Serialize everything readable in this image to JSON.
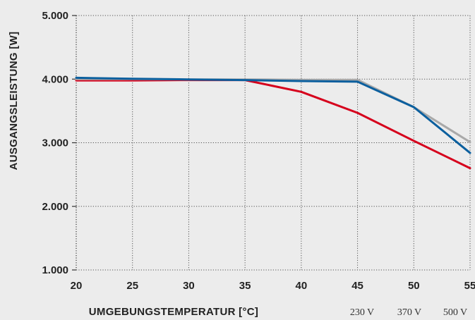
{
  "chart_data": {
    "type": "line",
    "xlabel": "UMGEBUNGSTEMPERATUR [°C]",
    "ylabel": "AUSGANGSLEISTUNG [W]",
    "x": [
      20,
      25,
      30,
      35,
      40,
      45,
      50,
      55
    ],
    "xlim": [
      20,
      55
    ],
    "ylim": [
      1000,
      5000
    ],
    "x_tick_labels": [
      "20",
      "25",
      "30",
      "35",
      "40",
      "45",
      "50",
      "55"
    ],
    "y_ticks": [
      1000,
      2000,
      3000,
      4000,
      5000
    ],
    "y_tick_labels": [
      "1.000",
      "2.000",
      "3.000",
      "4.000",
      "5.000"
    ],
    "grid": true,
    "legend_position": "bottom-right",
    "series": [
      {
        "name": "230 V",
        "color": "#d6001c",
        "values": [
          3980,
          3980,
          3985,
          3985,
          3800,
          3470,
          3030,
          2600
        ]
      },
      {
        "name": "370 V",
        "color": "#a9a9a9",
        "values": [
          4000,
          4000,
          3995,
          3995,
          3990,
          3990,
          3560,
          3010
        ]
      },
      {
        "name": "500 V",
        "color": "#0b5f9e",
        "values": [
          4020,
          4005,
          3995,
          3985,
          3970,
          3960,
          3560,
          2840
        ]
      }
    ]
  }
}
